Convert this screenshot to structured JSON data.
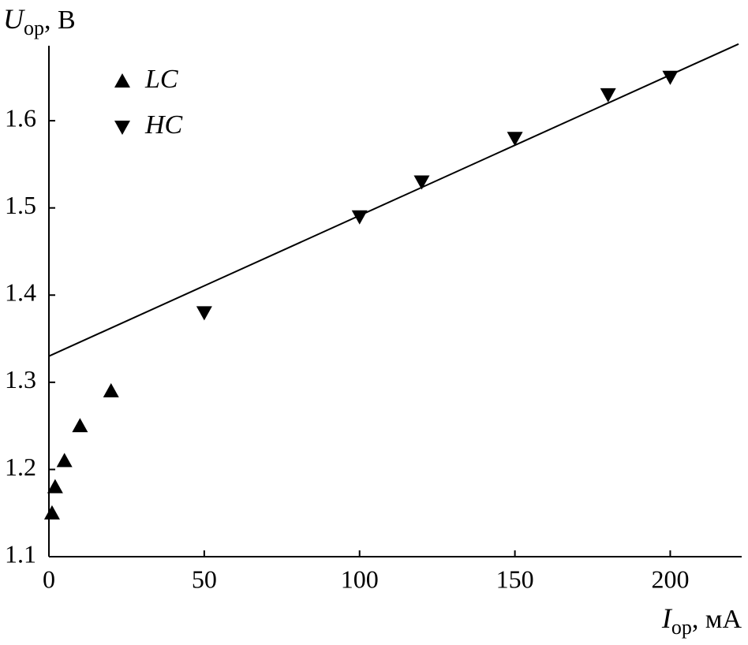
{
  "chart_data": {
    "type": "scatter",
    "ylabel": {
      "symbol": "U",
      "subscript": "ор",
      "unit": ", В"
    },
    "xlabel": {
      "symbol": "I",
      "subscript": "ор",
      "unit": ", мА"
    },
    "xlim": [
      0,
      223
    ],
    "ylim": [
      1.1,
      1.686
    ],
    "xticks": [
      0,
      50,
      100,
      150,
      200
    ],
    "yticks": [
      1.1,
      1.2,
      1.3,
      1.4,
      1.5,
      1.6
    ],
    "legend": "upper-left",
    "series": [
      {
        "name": "LC",
        "marker": "triangle-up",
        "color": "#000000",
        "x": [
          1,
          2,
          5,
          10,
          20
        ],
        "values": [
          1.15,
          1.18,
          1.21,
          1.25,
          1.29
        ]
      },
      {
        "name": "HC",
        "marker": "triangle-down",
        "color": "#000000",
        "x": [
          50,
          100,
          120,
          150,
          180,
          200
        ],
        "values": [
          1.38,
          1.49,
          1.53,
          1.58,
          1.63,
          1.65
        ]
      },
      {
        "marker": "line",
        "color": "#000000",
        "x": [
          0,
          222
        ],
        "values": [
          1.33,
          1.688
        ]
      }
    ]
  }
}
